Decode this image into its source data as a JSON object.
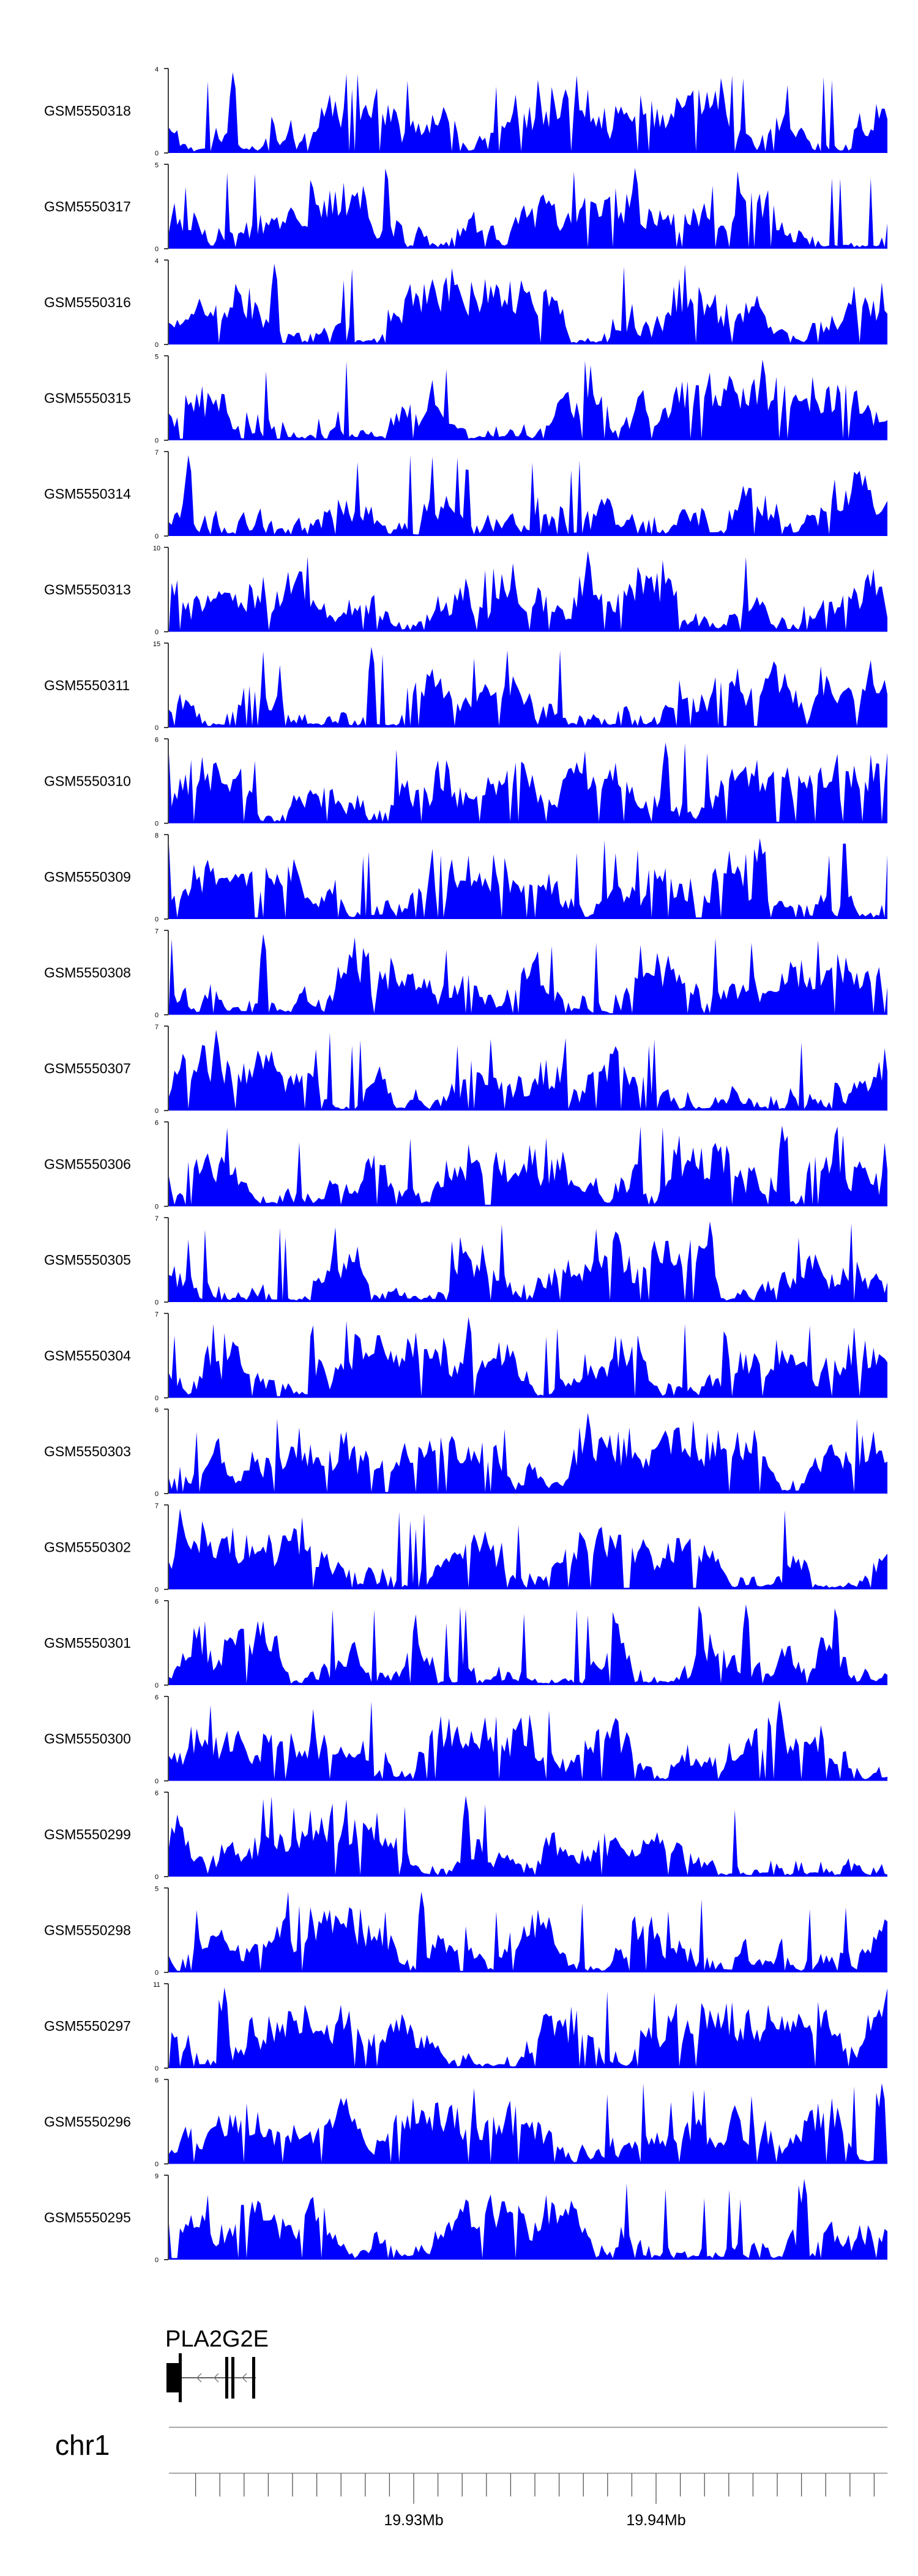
{
  "chart_data": {
    "type": "area",
    "color": "#0000ff",
    "chromosome": "chr1",
    "gene": {
      "name": "PLA2G2E",
      "strand": "-"
    },
    "x_axis": {
      "labels": [
        "19.93Mb",
        "19.94Mb"
      ],
      "label_values_mb": [
        19.93,
        19.94
      ]
    },
    "tracks": [
      {
        "name": "GSM5550318",
        "ymax": 4
      },
      {
        "name": "GSM5550317",
        "ymax": 5
      },
      {
        "name": "GSM5550316",
        "ymax": 4
      },
      {
        "name": "GSM5550315",
        "ymax": 5
      },
      {
        "name": "GSM5550314",
        "ymax": 7
      },
      {
        "name": "GSM5550313",
        "ymax": 10
      },
      {
        "name": "GSM5550311",
        "ymax": 15
      },
      {
        "name": "GSM5550310",
        "ymax": 6
      },
      {
        "name": "GSM5550309",
        "ymax": 8
      },
      {
        "name": "GSM5550308",
        "ymax": 7
      },
      {
        "name": "GSM5550307",
        "ymax": 7
      },
      {
        "name": "GSM5550306",
        "ymax": 6
      },
      {
        "name": "GSM5550305",
        "ymax": 7
      },
      {
        "name": "GSM5550304",
        "ymax": 7
      },
      {
        "name": "GSM5550303",
        "ymax": 6
      },
      {
        "name": "GSM5550302",
        "ymax": 7
      },
      {
        "name": "GSM5550301",
        "ymax": 6
      },
      {
        "name": "GSM5550300",
        "ymax": 6
      },
      {
        "name": "GSM5550299",
        "ymax": 6
      },
      {
        "name": "GSM5550298",
        "ymax": 5
      },
      {
        "name": "GSM5550297",
        "ymax": 11
      },
      {
        "name": "GSM5550296",
        "ymax": 6
      },
      {
        "name": "GSM5550295",
        "ymax": 9
      }
    ]
  }
}
